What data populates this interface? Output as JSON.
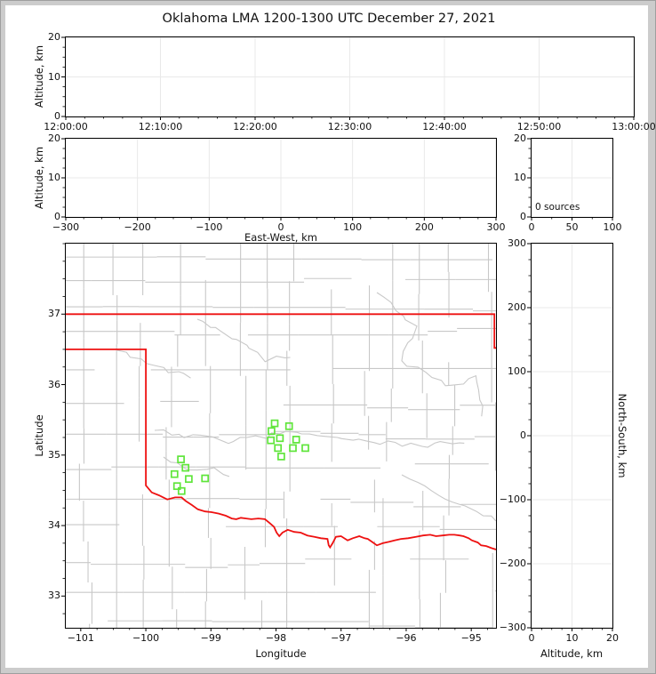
{
  "title": "Oklahoma LMA 1200-1300 UTC December 27, 2021",
  "chart_data": {
    "type": "scatter",
    "title": "Oklahoma LMA 1200-1300 UTC December 27, 2021",
    "source_count_label": "0 sources",
    "colors": {
      "state_border": "#ee1111",
      "county_lines": "#c8c8c8",
      "station_marker": "#5fe53a",
      "gridline": "#e9e9e9",
      "spine": "#000000",
      "window_frame": "#cccccc"
    },
    "panels": {
      "time_height": {
        "ylabel": "Altitude, km",
        "xlim": [
          0,
          3600
        ],
        "ylim": [
          0,
          20
        ],
        "xtick_values": [
          0,
          600,
          1200,
          1800,
          2400,
          3000,
          3600
        ],
        "xtick_labels": [
          "12:00:00",
          "12:10:00",
          "12:20:00",
          "12:30:00",
          "12:40:00",
          "12:50:00",
          "13:00:00"
        ],
        "ytick_values": [
          0,
          10,
          20
        ],
        "ytick_labels": [
          "0",
          "10",
          "20"
        ],
        "x_minor": 120,
        "y_minor": 2.5,
        "grid": true,
        "points": []
      },
      "ew_height": {
        "xlabel": "East-West, km",
        "ylabel": "Altitude, km",
        "xlim": [
          -300,
          300
        ],
        "ylim": [
          0,
          20
        ],
        "xtick_values": [
          -300,
          -200,
          -100,
          0,
          100,
          200,
          300
        ],
        "xtick_labels": [
          "−300",
          "−200",
          "−100",
          "0",
          "100",
          "200",
          "300"
        ],
        "ytick_values": [
          0,
          10,
          20
        ],
        "ytick_labels": [
          "0",
          "10",
          "20"
        ],
        "x_minor": 25,
        "y_minor": 2.5,
        "grid": true,
        "points": []
      },
      "alt_histogram": {
        "annotation": "0 sources",
        "xlim": [
          0,
          100
        ],
        "ylim": [
          0,
          20
        ],
        "xtick_values": [
          0,
          50,
          100
        ],
        "xtick_labels": [
          "0",
          "50",
          "100"
        ],
        "ytick_values": [
          0,
          10,
          20
        ],
        "ytick_labels": [
          "0",
          "10",
          "20"
        ],
        "x_minor": 25,
        "y_minor": 2.5,
        "grid": true,
        "points": []
      },
      "map": {
        "xlabel": "Longitude",
        "ylabel": "Latitude",
        "xlim": [
          -101.23,
          -94.62
        ],
        "ylim": [
          32.55,
          38.0
        ],
        "xtick_values": [
          -101,
          -100,
          -99,
          -98,
          -97,
          -96,
          -95
        ],
        "xtick_labels": [
          "−101",
          "−100",
          "−99",
          "−98",
          "−97",
          "−96",
          "−95"
        ],
        "ytick_values": [
          33,
          34,
          35,
          36,
          37
        ],
        "ytick_labels": [
          "33",
          "34",
          "35",
          "36",
          "37"
        ],
        "x_minor": 0.25,
        "y_minor": 0.25,
        "grid": false,
        "points": [],
        "stations": [
          [
            -99.46,
            34.94
          ],
          [
            -99.39,
            34.82
          ],
          [
            -99.56,
            34.73
          ],
          [
            -99.34,
            34.66
          ],
          [
            -99.09,
            34.67
          ],
          [
            -99.52,
            34.56
          ],
          [
            -99.45,
            34.49
          ],
          [
            -98.02,
            35.45
          ],
          [
            -97.8,
            35.41
          ],
          [
            -98.07,
            35.34
          ],
          [
            -97.94,
            35.24
          ],
          [
            -98.08,
            35.21
          ],
          [
            -97.69,
            35.22
          ],
          [
            -97.97,
            35.1
          ],
          [
            -97.74,
            35.1
          ],
          [
            -97.55,
            35.1
          ],
          [
            -97.92,
            34.98
          ]
        ],
        "state_border": [
          [
            [
              -101.23,
              37.0
            ],
            [
              -94.645,
              37.0
            ],
            [
              -94.645,
              36.52
            ],
            [
              -94.62,
              36.52
            ]
          ],
          [
            [
              -101.23,
              36.5
            ],
            [
              -100.0,
              36.5
            ],
            [
              -100.0,
              34.57
            ],
            [
              -99.91,
              34.47
            ],
            [
              -99.8,
              34.43
            ],
            [
              -99.67,
              34.37
            ],
            [
              -99.55,
              34.4
            ],
            [
              -99.45,
              34.4
            ],
            [
              -99.39,
              34.35
            ],
            [
              -99.29,
              34.29
            ],
            [
              -99.2,
              34.23
            ],
            [
              -99.09,
              34.2
            ],
            [
              -98.99,
              34.19
            ],
            [
              -98.88,
              34.17
            ],
            [
              -98.77,
              34.14
            ],
            [
              -98.68,
              34.1
            ],
            [
              -98.61,
              34.09
            ],
            [
              -98.54,
              34.11
            ],
            [
              -98.46,
              34.1
            ],
            [
              -98.38,
              34.09
            ],
            [
              -98.27,
              34.1
            ],
            [
              -98.17,
              34.09
            ],
            [
              -98.09,
              34.03
            ],
            [
              -98.03,
              33.98
            ],
            [
              -97.99,
              33.9
            ],
            [
              -97.95,
              33.85
            ],
            [
              -97.9,
              33.9
            ],
            [
              -97.82,
              33.94
            ],
            [
              -97.72,
              33.91
            ],
            [
              -97.62,
              33.9
            ],
            [
              -97.52,
              33.86
            ],
            [
              -97.41,
              33.84
            ],
            [
              -97.31,
              33.82
            ],
            [
              -97.21,
              33.81
            ],
            [
              -97.19,
              33.72
            ],
            [
              -97.17,
              33.69
            ],
            [
              -97.13,
              33.75
            ],
            [
              -97.08,
              33.84
            ],
            [
              -97.0,
              33.85
            ],
            [
              -96.9,
              33.79
            ],
            [
              -96.82,
              33.82
            ],
            [
              -96.72,
              33.85
            ],
            [
              -96.64,
              33.82
            ],
            [
              -96.59,
              33.81
            ],
            [
              -96.51,
              33.76
            ],
            [
              -96.45,
              33.72
            ],
            [
              -96.36,
              33.75
            ],
            [
              -96.26,
              33.77
            ],
            [
              -96.18,
              33.79
            ],
            [
              -96.08,
              33.81
            ],
            [
              -95.97,
              33.82
            ],
            [
              -95.85,
              33.84
            ],
            [
              -95.74,
              33.86
            ],
            [
              -95.63,
              33.87
            ],
            [
              -95.54,
              33.85
            ],
            [
              -95.44,
              33.86
            ],
            [
              -95.34,
              33.87
            ],
            [
              -95.26,
              33.87
            ],
            [
              -95.18,
              33.86
            ],
            [
              -95.12,
              33.85
            ],
            [
              -95.04,
              33.82
            ],
            [
              -94.99,
              33.79
            ],
            [
              -94.9,
              33.76
            ],
            [
              -94.85,
              33.72
            ],
            [
              -94.77,
              33.71
            ],
            [
              -94.69,
              33.68
            ],
            [
              -94.62,
              33.66
            ]
          ]
        ]
      },
      "ns_height": {
        "xlabel": "Altitude, km",
        "ylabel": "North-South, km",
        "xlim": [
          0,
          20
        ],
        "ylim": [
          -300,
          300
        ],
        "xtick_values": [
          0,
          10,
          20
        ],
        "xtick_labels": [
          "0",
          "10",
          "20"
        ],
        "ytick_values": [
          -300,
          -200,
          -100,
          0,
          100,
          200,
          300
        ],
        "ytick_labels": [
          "−300",
          "−200",
          "−100",
          "0",
          "100",
          "200",
          "300"
        ],
        "x_minor": 2.5,
        "y_minor": 25,
        "grid": true,
        "points": []
      }
    }
  }
}
